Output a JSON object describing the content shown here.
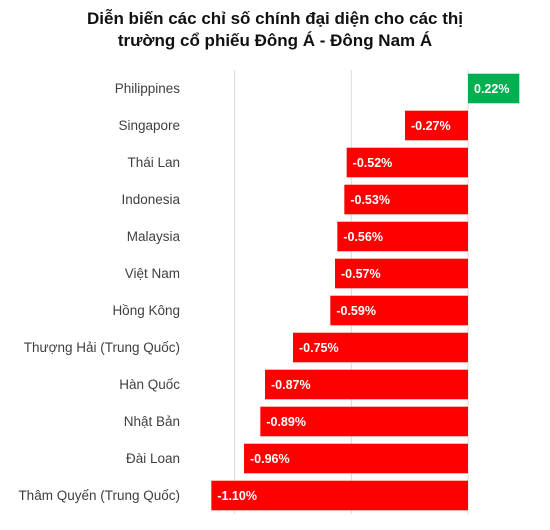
{
  "title_lines": [
    "Diễn biến các chỉ số chính đại diện cho các thị",
    "trường cổ phiếu Đông Á - Đông Nam Á"
  ],
  "chart_data": {
    "type": "bar",
    "orientation": "horizontal",
    "title": "Diễn biến các chỉ số chính đại diện cho các thị trường cổ phiếu Đông Á - Đông Nam Á",
    "categories": [
      "Philippines",
      "Singapore",
      "Thái Lan",
      "Indonesia",
      "Malaysia",
      "Việt Nam",
      "Hồng Kông",
      "Thượng Hải (Trung Quốc)",
      "Hàn Quốc",
      "Nhật Bản",
      "Đài Loan",
      "Thâm Quyến (Trung Quốc)"
    ],
    "values": [
      0.22,
      -0.27,
      -0.52,
      -0.53,
      -0.56,
      -0.57,
      -0.59,
      -0.75,
      -0.87,
      -0.89,
      -0.96,
      -1.1
    ],
    "data_labels": [
      "0.22%",
      "-0.27%",
      "-0.52%",
      "-0.53%",
      "-0.56%",
      "-0.57%",
      "-0.59%",
      "-0.75%",
      "-0.87%",
      "-0.89%",
      "-0.96%",
      "-1.10%"
    ],
    "xlim": [
      -1.2,
      0.3
    ],
    "gridlines": [
      -1.0,
      -0.5,
      0.0
    ],
    "grid": true,
    "colors": {
      "positive": "#00B050",
      "negative": "#FF0000",
      "grid": "#d9d9d9",
      "label_text": "#ffffff"
    }
  }
}
